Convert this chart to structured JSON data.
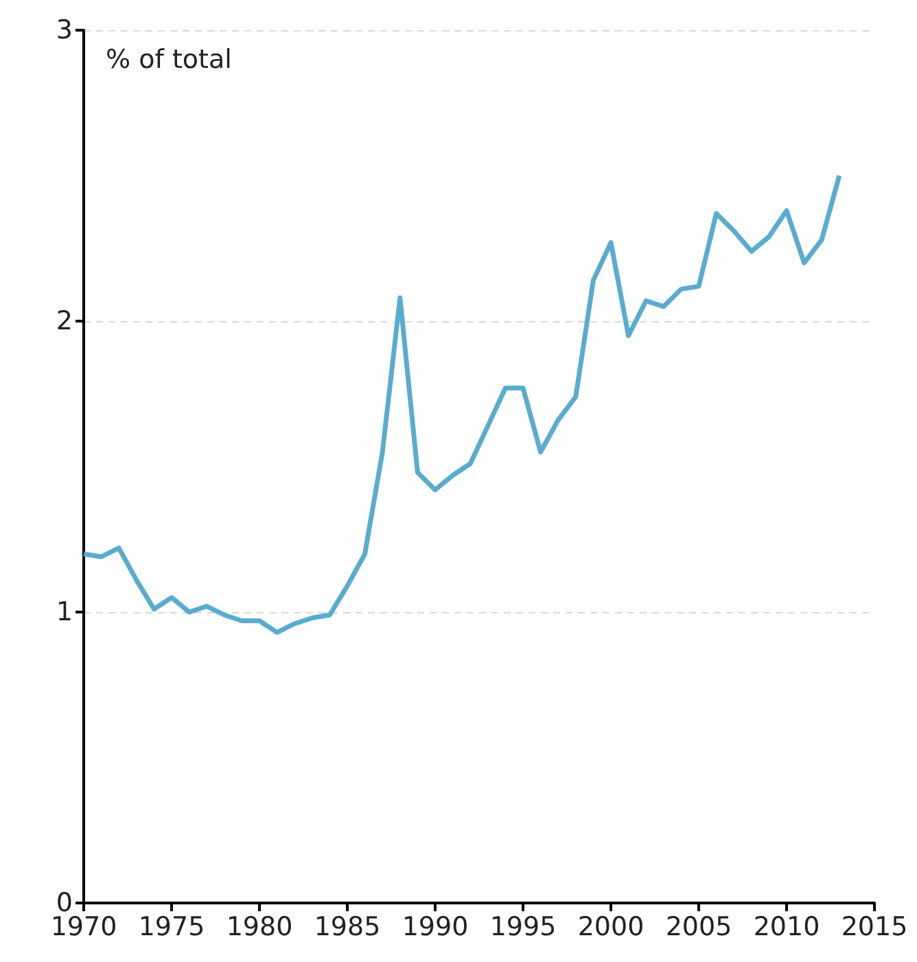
{
  "chart_data": {
    "type": "line",
    "ylabel": "% of total",
    "x": [
      1970,
      1971,
      1972,
      1973,
      1974,
      1975,
      1976,
      1977,
      1978,
      1979,
      1980,
      1981,
      1982,
      1983,
      1984,
      1985,
      1986,
      1987,
      1988,
      1989,
      1990,
      1991,
      1992,
      1993,
      1994,
      1995,
      1996,
      1997,
      1998,
      1999,
      2000,
      2001,
      2002,
      2003,
      2004,
      2005,
      2006,
      2007,
      2008,
      2009,
      2010,
      2011,
      2012,
      2013
    ],
    "series": [
      {
        "color": "#5aaccf",
        "values": [
          1.2,
          1.19,
          1.22,
          1.11,
          1.01,
          1.05,
          1.0,
          1.02,
          0.99,
          0.97,
          0.97,
          0.93,
          0.96,
          0.98,
          0.99,
          1.09,
          1.2,
          1.55,
          2.08,
          1.48,
          1.42,
          1.47,
          1.51,
          1.64,
          1.77,
          1.77,
          1.55,
          1.66,
          1.74,
          2.14,
          2.27,
          1.95,
          2.07,
          2.05,
          2.11,
          2.12,
          2.37,
          2.31,
          2.24,
          2.29,
          2.38,
          2.2,
          2.28,
          2.5
        ]
      }
    ],
    "xlim": [
      1970,
      2015
    ],
    "xticks": [
      1970,
      1975,
      1980,
      1985,
      1990,
      1995,
      2000,
      2005,
      2010,
      2015
    ],
    "ylim": [
      0,
      3
    ],
    "yticks": [
      0,
      1,
      2,
      3
    ],
    "grid": "y",
    "marker": "none",
    "line_style": "solid"
  }
}
